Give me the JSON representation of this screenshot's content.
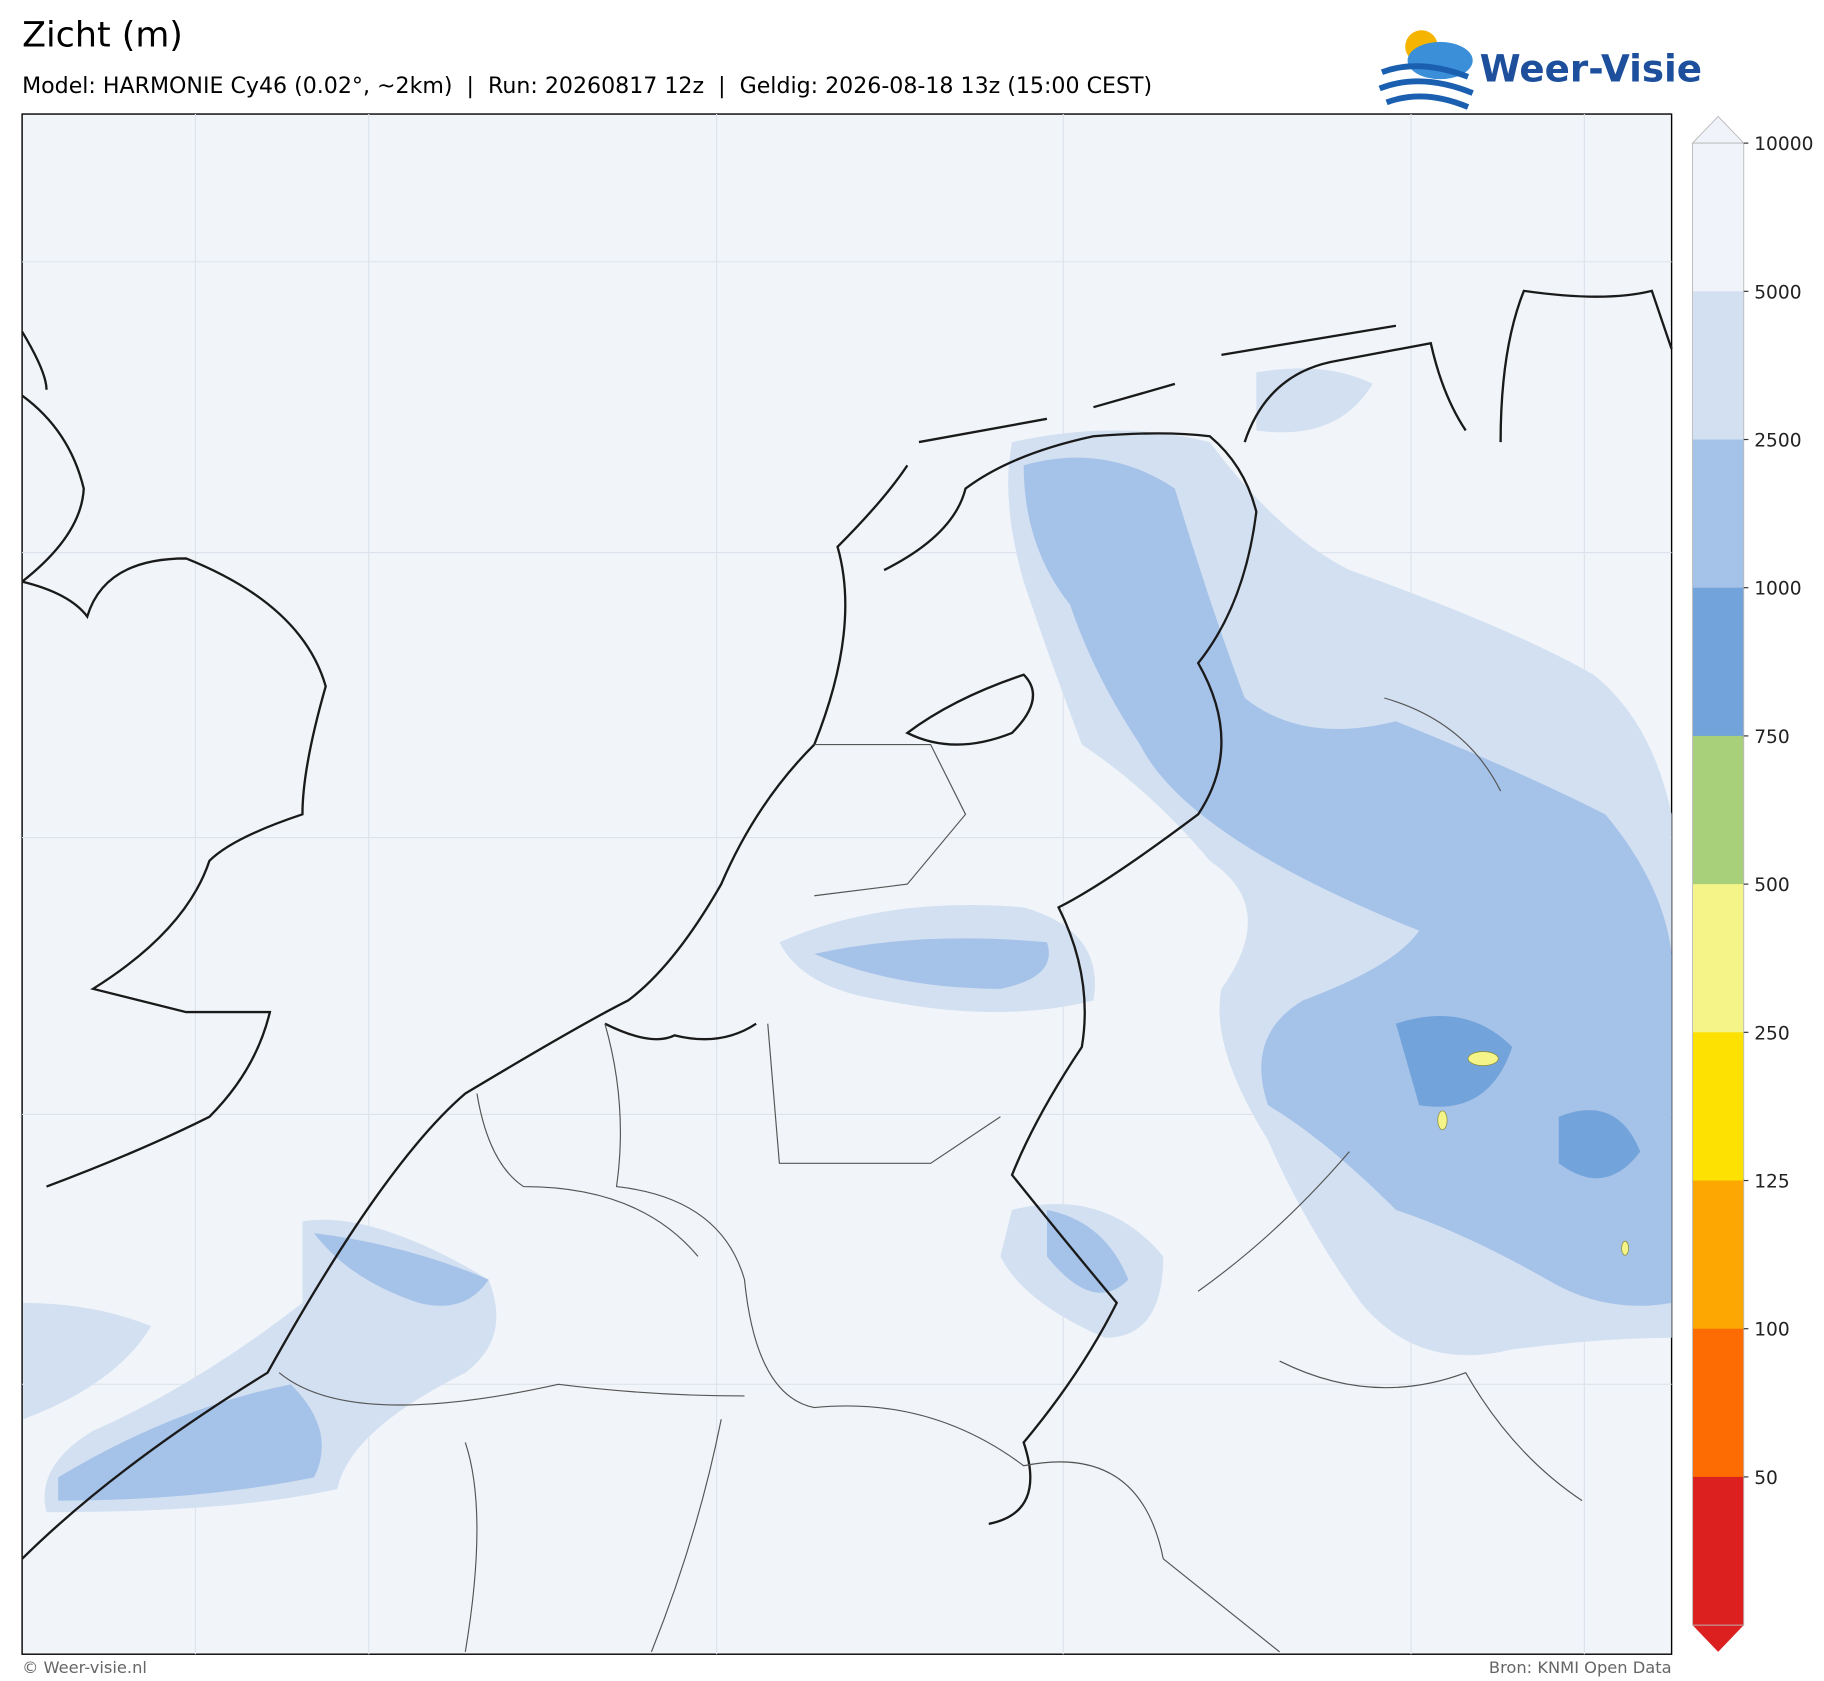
{
  "header": {
    "title": "Zicht (m)",
    "subtitle": "Model: HARMONIE Cy46 (0.02°, ~2km)  |  Run: 20260817 12z  |  Geldig: 2026-08-18 13z (15:00 CEST)",
    "logo": "Weer-Visie"
  },
  "colorbar": {
    "ticks": [
      10000,
      5000,
      2500,
      1000,
      750,
      500,
      250,
      125,
      100,
      50
    ],
    "colors": [
      "#f0f4fa",
      "#d2e0f1",
      "#a5c2e9",
      "#72a3da",
      "#a8d07a",
      "#f4f488",
      "#fde102",
      "#fda802",
      "#fd6c02",
      "#dc2020"
    ]
  },
  "footer": {
    "left": "© Weer-visie.nl",
    "right": "Bron: KNMI Open Data"
  }
}
